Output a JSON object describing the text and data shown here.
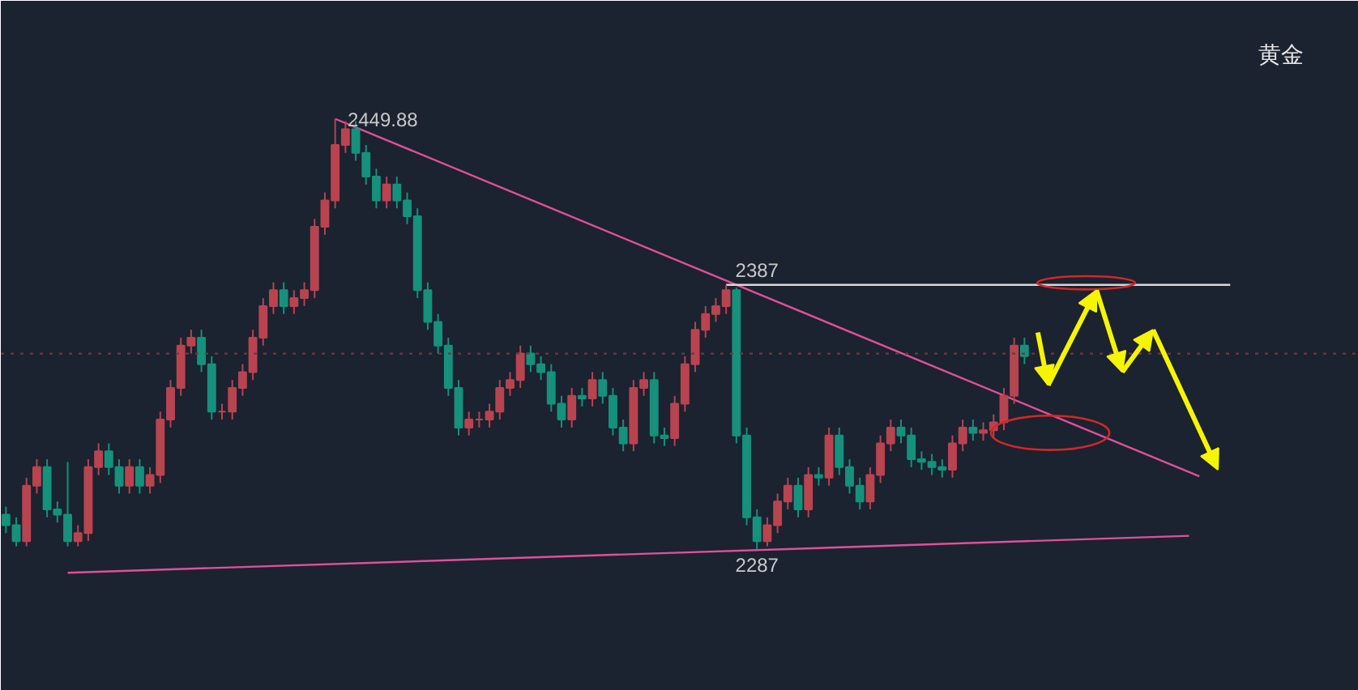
{
  "chart_data": {
    "type": "candlestick",
    "title": "黄金",
    "categories": [
      null,
      null,
      null,
      null,
      null,
      null,
      null,
      null,
      null,
      null,
      null,
      null,
      null,
      null,
      null,
      null,
      null,
      null,
      null,
      null,
      null,
      null,
      null,
      null,
      null,
      null,
      null,
      null,
      null,
      null,
      null,
      null,
      null,
      null,
      null,
      null,
      null,
      null,
      null,
      null,
      null,
      null,
      null,
      null,
      null,
      null,
      null,
      null,
      null,
      null,
      null,
      null,
      null,
      null,
      null,
      null,
      null,
      null,
      null,
      null,
      null,
      null,
      null,
      null,
      null,
      null,
      null,
      null,
      null,
      null,
      null,
      null,
      null,
      null,
      null,
      null,
      null,
      null,
      null,
      null,
      null,
      null,
      null,
      null,
      null,
      null,
      null,
      null,
      null,
      null,
      null,
      null,
      null,
      null,
      null,
      null,
      null,
      null,
      null,
      null,
      null,
      null,
      null,
      null,
      null,
      null,
      null,
      null,
      null,
      null,
      null,
      null,
      null,
      null,
      null,
      null,
      null,
      null,
      null,
      null,
      null,
      null,
      null,
      null,
      null,
      null,
      null,
      null,
      null,
      null,
      null,
      null
    ],
    "ohlc": [
      [
        2300,
        2303,
        2293,
        2296
      ],
      [
        2296,
        2299,
        2288,
        2290
      ],
      [
        2290,
        2314,
        2288,
        2311
      ],
      [
        2311,
        2321,
        2308,
        2318
      ],
      [
        2318,
        2321,
        2299,
        2302
      ],
      [
        2302,
        2305,
        2297,
        2300
      ],
      [
        2300,
        2320,
        2288,
        2290
      ],
      [
        2290,
        2296,
        2288,
        2293
      ],
      [
        2293,
        2321,
        2290,
        2318
      ],
      [
        2318,
        2327,
        2315,
        2324
      ],
      [
        2324,
        2327,
        2315,
        2318
      ],
      [
        2318,
        2321,
        2308,
        2311
      ],
      [
        2311,
        2321,
        2308,
        2318
      ],
      [
        2318,
        2321,
        2308,
        2311
      ],
      [
        2311,
        2318,
        2308,
        2315
      ],
      [
        2315,
        2339,
        2312,
        2336
      ],
      [
        2336,
        2351,
        2333,
        2348
      ],
      [
        2348,
        2367,
        2345,
        2364
      ],
      [
        2364,
        2370,
        2361,
        2367
      ],
      [
        2367,
        2370,
        2354,
        2357
      ],
      [
        2357,
        2360,
        2336,
        2339
      ],
      [
        2339,
        2342,
        2336,
        2339
      ],
      [
        2339,
        2351,
        2336,
        2348
      ],
      [
        2348,
        2357,
        2345,
        2354
      ],
      [
        2354,
        2370,
        2351,
        2367
      ],
      [
        2367,
        2382,
        2364,
        2379
      ],
      [
        2379,
        2388,
        2376,
        2385
      ],
      [
        2385,
        2388,
        2376,
        2379
      ],
      [
        2379,
        2385,
        2376,
        2382
      ],
      [
        2382,
        2388,
        2379,
        2385
      ],
      [
        2385,
        2412,
        2382,
        2409
      ],
      [
        2409,
        2422,
        2406,
        2419
      ],
      [
        2419,
        2449.88,
        2416,
        2440
      ],
      [
        2440,
        2449,
        2437,
        2446
      ],
      [
        2446,
        2449,
        2434,
        2437
      ],
      [
        2437,
        2440,
        2425,
        2428
      ],
      [
        2428,
        2431,
        2416,
        2419
      ],
      [
        2419,
        2428,
        2416,
        2425
      ],
      [
        2425,
        2428,
        2416,
        2419
      ],
      [
        2419,
        2422,
        2410,
        2413
      ],
      [
        2413,
        2416,
        2382,
        2385
      ],
      [
        2385,
        2388,
        2370,
        2373
      ],
      [
        2373,
        2376,
        2361,
        2364
      ],
      [
        2364,
        2367,
        2345,
        2348
      ],
      [
        2348,
        2351,
        2330,
        2333
      ],
      [
        2333,
        2339,
        2330,
        2336
      ],
      [
        2336,
        2339,
        2333,
        2336
      ],
      [
        2336,
        2342,
        2333,
        2339
      ],
      [
        2339,
        2351,
        2336,
        2348
      ],
      [
        2348,
        2354,
        2345,
        2351
      ],
      [
        2351,
        2364,
        2348,
        2361
      ],
      [
        2361,
        2364,
        2354,
        2357
      ],
      [
        2357,
        2360,
        2351,
        2354
      ],
      [
        2354,
        2357,
        2339,
        2342
      ],
      [
        2342,
        2345,
        2333,
        2336
      ],
      [
        2336,
        2348,
        2333,
        2345
      ],
      [
        2345,
        2348,
        2341,
        2344
      ],
      [
        2344,
        2354,
        2341,
        2351
      ],
      [
        2351,
        2354,
        2342,
        2345
      ],
      [
        2345,
        2348,
        2330,
        2333
      ],
      [
        2333,
        2336,
        2324,
        2327
      ],
      [
        2327,
        2351,
        2324,
        2348
      ],
      [
        2348,
        2354,
        2345,
        2351
      ],
      [
        2351,
        2354,
        2327,
        2330
      ],
      [
        2330,
        2333,
        2326,
        2329
      ],
      [
        2329,
        2345,
        2326,
        2342
      ],
      [
        2342,
        2360,
        2339,
        2357
      ],
      [
        2357,
        2373,
        2354,
        2370
      ],
      [
        2370,
        2379,
        2367,
        2376
      ],
      [
        2376,
        2382,
        2373,
        2379
      ],
      [
        2379,
        2387,
        2376,
        2385
      ],
      [
        2385,
        2386,
        2327,
        2330
      ],
      [
        2330,
        2333,
        2296,
        2299
      ],
      [
        2299,
        2302,
        2287,
        2290
      ],
      [
        2290,
        2299,
        2288,
        2296
      ],
      [
        2296,
        2308,
        2293,
        2305
      ],
      [
        2305,
        2314,
        2302,
        2311
      ],
      [
        2311,
        2314,
        2299,
        2302
      ],
      [
        2302,
        2318,
        2299,
        2315
      ],
      [
        2315,
        2318,
        2311,
        2314
      ],
      [
        2314,
        2333,
        2311,
        2330
      ],
      [
        2330,
        2333,
        2315,
        2318
      ],
      [
        2318,
        2321,
        2308,
        2311
      ],
      [
        2311,
        2314,
        2302,
        2305
      ],
      [
        2305,
        2318,
        2302,
        2315
      ],
      [
        2315,
        2330,
        2312,
        2327
      ],
      [
        2327,
        2336,
        2324,
        2333
      ],
      [
        2333,
        2336,
        2327,
        2330
      ],
      [
        2330,
        2333,
        2318,
        2321
      ],
      [
        2321,
        2324,
        2317,
        2320
      ],
      [
        2320,
        2323,
        2315,
        2318
      ],
      [
        2318,
        2321,
        2314,
        2317
      ],
      [
        2317,
        2330,
        2314,
        2327
      ],
      [
        2327,
        2336,
        2324,
        2333
      ],
      [
        2333,
        2336,
        2328,
        2331
      ],
      [
        2331,
        2335,
        2328,
        2332
      ],
      [
        2332,
        2338,
        2329,
        2335
      ],
      [
        2335,
        2348,
        2332,
        2345
      ],
      [
        2345,
        2367,
        2342,
        2364
      ],
      [
        2364,
        2367,
        2357,
        2360
      ],
      null,
      null,
      null,
      null,
      null,
      null,
      null,
      null,
      null,
      null,
      null,
      null,
      null,
      null,
      null,
      null,
      null,
      null,
      null,
      null,
      null,
      null,
      null,
      null,
      null,
      null,
      null,
      null,
      null,
      null,
      null,
      null
    ],
    "series": [
      {
        "type": "line",
        "values": [
          null,
          null,
          null,
          null,
          null,
          null,
          null,
          null,
          null,
          null,
          null,
          null,
          null,
          null,
          null,
          null,
          null,
          null,
          null,
          null,
          null,
          null,
          null,
          null,
          null,
          null,
          null,
          null,
          null,
          null,
          null,
          null,
          2449.88,
          null,
          null,
          null,
          null,
          null,
          null,
          null,
          null,
          null,
          null,
          null,
          null,
          null,
          null,
          null,
          null,
          null,
          null,
          null,
          null,
          null,
          null,
          null,
          null,
          null,
          null,
          null,
          null,
          null,
          null,
          null,
          null,
          null,
          null,
          null,
          null,
          null,
          null,
          null,
          null,
          null,
          null,
          null,
          null,
          null,
          null,
          null,
          null,
          null,
          null,
          null,
          null,
          null,
          null,
          null,
          null,
          null,
          null,
          null,
          null,
          null,
          null,
          null,
          null,
          null,
          null,
          null,
          null,
          null,
          null,
          null,
          null,
          null,
          null,
          null,
          null,
          null,
          null,
          null,
          null,
          null,
          null,
          null,
          2314.5,
          null,
          null,
          null,
          null,
          null,
          null,
          null,
          null,
          null,
          null,
          null,
          null,
          null,
          null,
          null
        ],
        "color": "#e0509a"
      },
      {
        "type": "line",
        "values": [
          null,
          null,
          null,
          null,
          null,
          null,
          2278,
          null,
          null,
          null,
          null,
          null,
          null,
          null,
          null,
          null,
          null,
          null,
          null,
          null,
          null,
          null,
          null,
          null,
          null,
          null,
          null,
          null,
          null,
          null,
          null,
          null,
          null,
          null,
          null,
          null,
          null,
          null,
          null,
          null,
          null,
          null,
          null,
          null,
          null,
          null,
          null,
          null,
          null,
          null,
          null,
          null,
          null,
          null,
          null,
          null,
          null,
          null,
          null,
          null,
          null,
          null,
          null,
          null,
          null,
          null,
          null,
          null,
          null,
          null,
          null,
          null,
          null,
          null,
          null,
          null,
          null,
          null,
          null,
          null,
          null,
          null,
          null,
          null,
          null,
          null,
          null,
          null,
          null,
          null,
          null,
          null,
          null,
          null,
          null,
          null,
          null,
          null,
          null,
          null,
          null,
          null,
          null,
          null,
          null,
          null,
          null,
          null,
          null,
          null,
          null,
          null,
          null,
          null,
          null,
          2292,
          null,
          null,
          null,
          null,
          null,
          null,
          null,
          null,
          null,
          null,
          null,
          null,
          null,
          null,
          null,
          null
        ],
        "color": "#e0509a"
      },
      {
        "type": "line",
        "values": [
          null,
          null,
          null,
          null,
          null,
          null,
          null,
          null,
          null,
          null,
          null,
          null,
          null,
          null,
          null,
          null,
          null,
          null,
          null,
          null,
          null,
          null,
          null,
          null,
          null,
          null,
          null,
          null,
          null,
          null,
          null,
          null,
          null,
          null,
          null,
          null,
          null,
          null,
          null,
          null,
          null,
          null,
          null,
          null,
          null,
          null,
          null,
          null,
          null,
          null,
          null,
          null,
          null,
          null,
          null,
          null,
          null,
          null,
          null,
          null,
          null,
          null,
          null,
          null,
          null,
          null,
          null,
          null,
          null,
          null,
          2387,
          null,
          null,
          null,
          null,
          null,
          null,
          null,
          null,
          null,
          null,
          null,
          null,
          null,
          null,
          null,
          null,
          null,
          null,
          null,
          null,
          null,
          null,
          null,
          null,
          null,
          null,
          null,
          null,
          null,
          null,
          null,
          null,
          null,
          null,
          null,
          null,
          null,
          null,
          null,
          null,
          null,
          null,
          null,
          null,
          null,
          null,
          null,
          null,
          2387,
          null,
          null,
          null,
          null,
          null,
          null,
          null,
          null,
          null,
          null,
          null,
          null
        ],
        "color": "#d8d8d8"
      }
    ],
    "ref_lines": [
      {
        "axis": "y",
        "value": 2361,
        "color": "#6b3a44",
        "line_style": "dotted"
      }
    ],
    "annotations": [
      "2449.88",
      "2387",
      "2287"
    ],
    "tick_labels": false,
    "grid": false
  }
}
